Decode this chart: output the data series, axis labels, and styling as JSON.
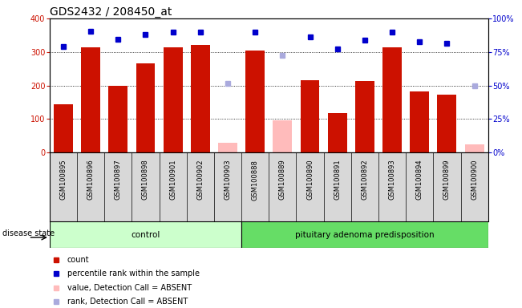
{
  "title": "GDS2432 / 208450_at",
  "samples": [
    "GSM100895",
    "GSM100896",
    "GSM100897",
    "GSM100898",
    "GSM100901",
    "GSM100902",
    "GSM100903",
    "GSM100888",
    "GSM100889",
    "GSM100890",
    "GSM100891",
    "GSM100892",
    "GSM100893",
    "GSM100894",
    "GSM100899",
    "GSM100900"
  ],
  "count_values": [
    145,
    315,
    200,
    265,
    315,
    320,
    null,
    305,
    null,
    215,
    118,
    213,
    315,
    182,
    172,
    null
  ],
  "absent_values": [
    null,
    null,
    null,
    null,
    null,
    null,
    30,
    null,
    95,
    null,
    null,
    null,
    null,
    null,
    null,
    25
  ],
  "rank_values": [
    316,
    362,
    338,
    352,
    360,
    360,
    null,
    360,
    null,
    345,
    308,
    336,
    360,
    330,
    327,
    null
  ],
  "absent_rank_values": [
    null,
    null,
    null,
    null,
    null,
    null,
    206,
    null,
    290,
    null,
    null,
    null,
    null,
    null,
    null,
    198
  ],
  "control_count": 7,
  "bar_color_present": "#cc1100",
  "bar_color_absent": "#ffbbbb",
  "dot_color_present": "#0000cc",
  "dot_color_absent": "#aaaadd",
  "ylim_left": [
    0,
    400
  ],
  "ylim_right": [
    0,
    100
  ],
  "yticks_left": [
    0,
    100,
    200,
    300,
    400
  ],
  "yticks_right": [
    0,
    25,
    50,
    75,
    100
  ],
  "yticklabels_right": [
    "0%",
    "25%",
    "50%",
    "75%",
    "100%"
  ],
  "grid_values": [
    100,
    200,
    300
  ],
  "title_fontsize": 10,
  "left_tick_color": "#cc1100",
  "right_tick_color": "#0000cc",
  "sample_bg_color": "#d8d8d8",
  "plot_bg_color": "#ffffff",
  "ctrl_color": "#ccffcc",
  "pit_color": "#66dd66",
  "disease_state_label": "disease state",
  "group_labels": [
    "control",
    "pituitary adenoma predisposition"
  ],
  "legend_items": [
    {
      "label": "count",
      "color": "#cc1100"
    },
    {
      "label": "percentile rank within the sample",
      "color": "#0000cc"
    },
    {
      "label": "value, Detection Call = ABSENT",
      "color": "#ffbbbb"
    },
    {
      "label": "rank, Detection Call = ABSENT",
      "color": "#aaaadd"
    }
  ]
}
